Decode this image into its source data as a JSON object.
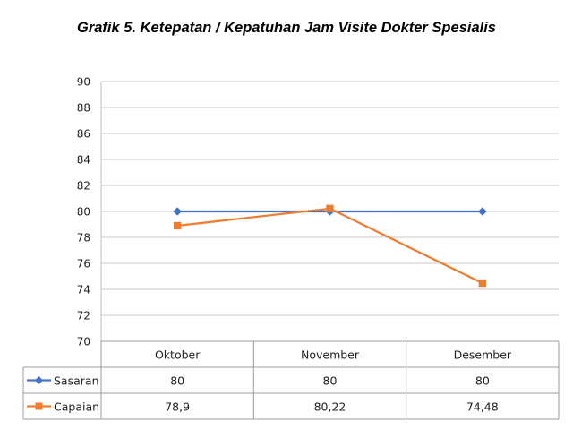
{
  "title": "Grafik 5. Ketepatan / Kepatuhan Jam Visite Dokter Spesialis",
  "chart_data": {
    "type": "line",
    "title": "Grafik 5. Ketepatan / Kepatuhan Jam Visite Dokter Spesialis",
    "categories": [
      "Oktober",
      "November",
      "Desember"
    ],
    "series": [
      {
        "name": "Sasaran",
        "values": [
          80,
          80,
          80
        ],
        "labels": [
          "80",
          "80",
          "80"
        ],
        "color": "#4472C4",
        "marker": "diamond"
      },
      {
        "name": "Capaian",
        "values": [
          78.9,
          80.22,
          74.48
        ],
        "labels": [
          "78,9",
          "80,22",
          "74,48"
        ],
        "color": "#ED7D31",
        "marker": "square"
      }
    ],
    "ylim": [
      70,
      90
    ],
    "yticks": [
      70,
      72,
      74,
      76,
      78,
      80,
      82,
      84,
      86,
      88,
      90
    ],
    "grid": true,
    "legend": "data-table"
  }
}
